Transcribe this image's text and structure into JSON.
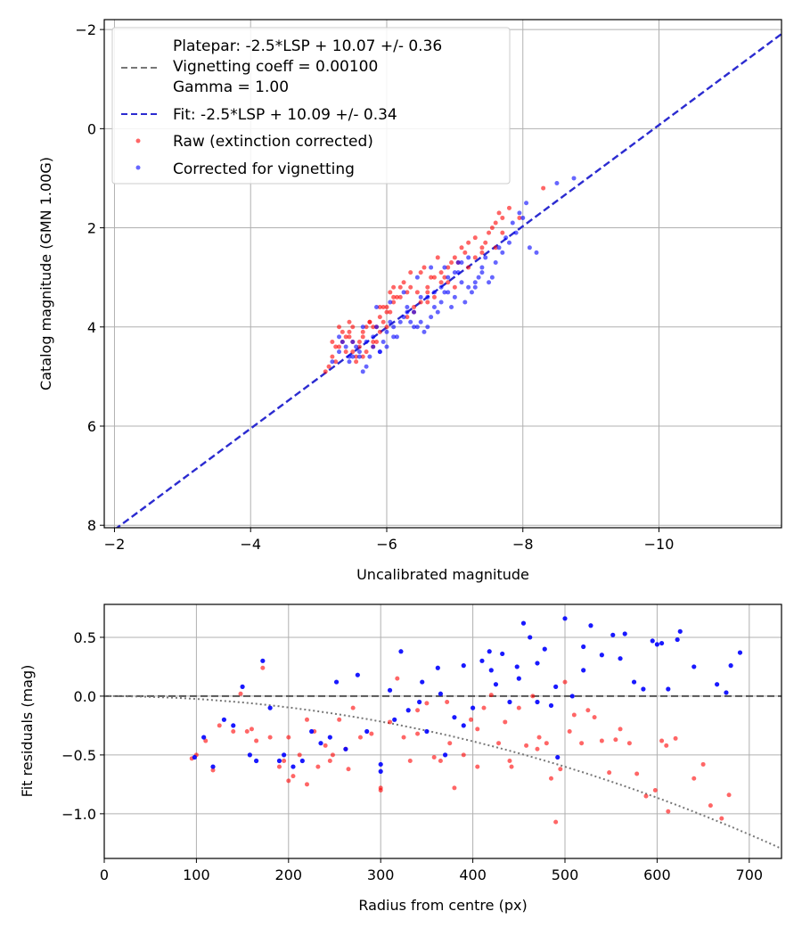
{
  "colors": {
    "raw": "#ff0000",
    "corrected": "#0000ff",
    "fit_line": "#2b2bd0",
    "platepar_line": "#777777",
    "grid": "#b0b0b0",
    "vignetting_curve": "#777777",
    "zero_line": "#555555"
  },
  "chart_data": [
    {
      "type": "scatter",
      "xlabel": "Uncalibrated magnitude",
      "ylabel": "Catalog magnitude (GMN 1.00G)",
      "xlim": [
        -1.85,
        -11.8
      ],
      "ylim": [
        8.05,
        -2.2
      ],
      "x_inverted": true,
      "y_inverted": true,
      "xticks": [
        -2,
        -4,
        -6,
        -8,
        -10
      ],
      "xtick_labels": [
        "−2",
        "−4",
        "−6",
        "−8",
        "−10"
      ],
      "yticks": [
        -2,
        0,
        2,
        4,
        6,
        8
      ],
      "ytick_labels": [
        "−2",
        "0",
        "2",
        "4",
        "6",
        "8"
      ],
      "grid": true,
      "legend_placement": "top-left",
      "legend": [
        "Platepar: -2.5*LSP + 10.07 +/- 0.36",
        "Vignetting coeff = 0.00100",
        "Gamma = 1.00",
        "Fit: -2.5*LSP + 10.09 +/- 0.34",
        "Raw (extinction corrected)",
        "Corrected for vignetting"
      ],
      "lines": [
        {
          "name": "Fit: -2.5*LSP + 10.09 +/- 0.34",
          "style": "dashed",
          "x": [
            -2.0,
            -11.8
          ],
          "y": [
            8.09,
            -1.91
          ]
        }
      ],
      "series": [
        {
          "name": "Raw (extinction corrected)",
          "x": [
            -5.1,
            -5.2,
            -5.25,
            -5.3,
            -5.35,
            -5.4,
            -5.45,
            -5.5,
            -5.55,
            -5.6,
            -5.65,
            -5.7,
            -5.75,
            -5.8,
            -5.85,
            -5.9,
            -5.95,
            -6.0,
            -6.05,
            -6.1,
            -5.2,
            -5.3,
            -5.4,
            -5.5,
            -5.6,
            -5.7,
            -5.8,
            -5.9,
            -6.0,
            -6.1,
            -5.15,
            -5.35,
            -5.45,
            -5.55,
            -5.65,
            -5.75,
            -5.85,
            -5.95,
            -6.05,
            -6.15,
            -6.2,
            -6.3,
            -6.4,
            -6.5,
            -6.6,
            -6.7,
            -6.8,
            -6.9,
            -7.0,
            -7.1,
            -6.25,
            -6.35,
            -6.45,
            -6.55,
            -6.65,
            -6.75,
            -6.85,
            -6.95,
            -7.05,
            -7.15,
            -7.2,
            -7.3,
            -7.4,
            -7.5,
            -7.6,
            -7.7,
            -7.8,
            -7.3,
            -7.45,
            -7.55,
            -7.65,
            -6.2,
            -6.4,
            -6.6,
            -6.8,
            -7.0,
            -8.3,
            -7.95,
            -7.7,
            -7.6,
            -7.4,
            -7.2,
            -6.9,
            -6.7,
            -6.5,
            -6.3,
            -5.45,
            -5.65,
            -5.8,
            -6.0,
            -5.25,
            -5.5,
            -5.9,
            -6.1,
            -6.35,
            -6.6
          ],
          "y": [
            4.9,
            4.6,
            4.7,
            4.4,
            4.3,
            4.5,
            4.2,
            4.0,
            4.6,
            4.3,
            4.1,
            4.5,
            3.9,
            4.0,
            4.3,
            3.8,
            3.9,
            3.6,
            3.7,
            3.5,
            4.3,
            4.0,
            4.2,
            4.5,
            4.4,
            4.0,
            4.3,
            4.1,
            3.7,
            3.4,
            4.8,
            4.1,
            3.9,
            4.7,
            4.2,
            3.9,
            4.0,
            3.6,
            3.3,
            3.4,
            3.4,
            3.3,
            3.6,
            2.9,
            3.2,
            3.0,
            3.1,
            2.8,
            2.6,
            2.4,
            3.1,
            3.2,
            3.3,
            2.8,
            3.0,
            2.6,
            3.0,
            2.7,
            2.7,
            2.5,
            2.3,
            2.2,
            2.4,
            2.1,
            1.9,
            1.8,
            1.6,
            2.6,
            2.3,
            2.0,
            1.7,
            3.2,
            3.7,
            3.5,
            2.9,
            3.2,
            1.2,
            1.8,
            2.1,
            2.4,
            2.5,
            2.8,
            3.1,
            3.4,
            3.5,
            3.8,
            4.1,
            4.6,
            4.4,
            4.0,
            4.4,
            4.3,
            3.6,
            3.2,
            2.9,
            3.3
          ]
        },
        {
          "name": "Corrected for vignetting",
          "x": [
            -5.2,
            -5.3,
            -5.4,
            -5.5,
            -5.6,
            -5.7,
            -5.8,
            -5.9,
            -6.0,
            -6.1,
            -5.35,
            -5.45,
            -5.55,
            -5.65,
            -5.75,
            -5.85,
            -5.95,
            -6.05,
            -6.15,
            -6.25,
            -6.3,
            -6.4,
            -6.5,
            -6.6,
            -6.7,
            -6.8,
            -6.9,
            -7.0,
            -7.1,
            -7.2,
            -6.35,
            -6.45,
            -6.55,
            -6.65,
            -6.75,
            -6.85,
            -6.95,
            -7.05,
            -7.15,
            -7.25,
            -7.3,
            -7.4,
            -7.5,
            -7.6,
            -7.7,
            -7.8,
            -7.9,
            -8.0,
            -8.1,
            -8.2,
            -7.35,
            -7.45,
            -7.55,
            -7.65,
            -7.75,
            -7.85,
            -7.95,
            -8.05,
            -8.5,
            -8.75,
            -5.5,
            -5.7,
            -5.9,
            -6.1,
            -6.3,
            -6.5,
            -6.7,
            -6.9,
            -7.1,
            -7.3,
            -5.6,
            -5.8,
            -6.0,
            -6.2,
            -6.4,
            -6.6,
            -6.8,
            -7.0,
            -7.2,
            -7.4,
            -5.3,
            -5.45,
            -5.65,
            -5.85,
            -6.05,
            -6.25,
            -6.45,
            -6.65,
            -6.85,
            -7.05
          ],
          "y": [
            4.7,
            4.5,
            4.4,
            4.3,
            4.6,
            4.8,
            4.2,
            4.5,
            4.4,
            4.0,
            4.3,
            4.7,
            4.4,
            4.9,
            4.6,
            4.0,
            4.3,
            3.9,
            4.2,
            3.8,
            3.7,
            4.0,
            3.9,
            4.0,
            3.6,
            3.5,
            3.3,
            3.4,
            3.1,
            3.2,
            3.9,
            4.0,
            4.1,
            3.8,
            3.7,
            3.3,
            3.6,
            2.9,
            3.5,
            3.3,
            3.2,
            2.8,
            3.1,
            2.7,
            2.5,
            2.3,
            2.1,
            1.8,
            2.4,
            2.5,
            3.0,
            2.6,
            3.0,
            2.4,
            2.2,
            1.9,
            1.7,
            1.5,
            1.1,
            1.0,
            4.6,
            4.3,
            4.5,
            4.2,
            3.6,
            3.4,
            3.3,
            3.0,
            2.7,
            3.1,
            4.5,
            4.4,
            4.1,
            3.9,
            3.7,
            3.4,
            3.2,
            2.9,
            2.6,
            2.9,
            4.2,
            4.6,
            4.0,
            3.6,
            3.5,
            3.3,
            3.0,
            2.8,
            2.8,
            2.7
          ]
        }
      ]
    },
    {
      "type": "scatter",
      "xlabel": "Radius from centre (px)",
      "ylabel": "Fit residuals (mag)",
      "xlim": [
        0,
        735
      ],
      "ylim": [
        -1.38,
        0.78
      ],
      "xticks": [
        0,
        100,
        200,
        300,
        400,
        500,
        600,
        700
      ],
      "xtick_labels": [
        "0",
        "100",
        "200",
        "300",
        "400",
        "500",
        "600",
        "700"
      ],
      "yticks": [
        -1.0,
        -0.5,
        0.0,
        0.5
      ],
      "ytick_labels": [
        "−1.0",
        "−0.5",
        "0.0",
        "0.5"
      ],
      "grid": true,
      "lines": [
        {
          "name": "zero",
          "style": "dashed",
          "y_const": 0.0
        },
        {
          "name": "vignetting model",
          "style": "dotted",
          "coeff": -2.4e-06
        }
      ],
      "series": [
        {
          "name": "Raw (extinction corrected)",
          "x": [
            95,
            100,
            110,
            118,
            125,
            140,
            148,
            155,
            160,
            165,
            172,
            180,
            190,
            195,
            200,
            205,
            212,
            220,
            228,
            232,
            240,
            248,
            255,
            262,
            270,
            278,
            290,
            300,
            310,
            318,
            325,
            332,
            340,
            350,
            358,
            365,
            372,
            380,
            390,
            398,
            405,
            412,
            420,
            428,
            435,
            442,
            450,
            458,
            465,
            472,
            480,
            485,
            490,
            495,
            500,
            510,
            518,
            525,
            532,
            540,
            548,
            555,
            570,
            578,
            588,
            598,
            605,
            612,
            620,
            640,
            658,
            670,
            678,
            200,
            220,
            245,
            265,
            300,
            340,
            375,
            405,
            440,
            470,
            505,
            560,
            610,
            650
          ],
          "x_note": "radius",
          "y": [
            -0.53,
            -0.5,
            -0.38,
            -0.63,
            -0.25,
            -0.3,
            0.02,
            -0.3,
            -0.28,
            -0.38,
            0.24,
            -0.35,
            -0.6,
            -0.55,
            -0.72,
            -0.68,
            -0.5,
            -0.75,
            -0.3,
            -0.6,
            -0.42,
            -0.5,
            -0.2,
            -0.45,
            -0.1,
            -0.35,
            -0.32,
            -0.78,
            -0.22,
            0.15,
            -0.35,
            -0.55,
            -0.32,
            -0.06,
            -0.52,
            -0.55,
            -0.05,
            -0.78,
            -0.5,
            -0.2,
            -0.28,
            -0.1,
            0.01,
            -0.4,
            -0.22,
            -0.6,
            -0.1,
            -0.42,
            0.0,
            -0.35,
            -0.4,
            -0.7,
            -1.07,
            -0.62,
            0.12,
            -0.16,
            -0.4,
            -0.12,
            -0.18,
            -0.38,
            -0.65,
            -0.37,
            -0.4,
            -0.66,
            -0.85,
            -0.8,
            -0.38,
            -0.98,
            -0.36,
            -0.7,
            -0.93,
            -1.04,
            -0.84,
            -0.35,
            -0.2,
            -0.55,
            -0.62,
            -0.8,
            -0.12,
            -0.4,
            -0.6,
            -0.55,
            -0.45,
            -0.3,
            -0.28,
            -0.42,
            -0.58
          ],
          "values_note": "mag"
        },
        {
          "name": "Corrected for vignetting",
          "x": [
            98,
            108,
            118,
            130,
            140,
            150,
            158,
            165,
            172,
            180,
            190,
            195,
            205,
            215,
            225,
            235,
            245,
            252,
            262,
            275,
            285,
            300,
            310,
            322,
            330,
            342,
            350,
            362,
            370,
            380,
            390,
            400,
            410,
            418,
            425,
            432,
            440,
            448,
            455,
            462,
            470,
            478,
            485,
            492,
            500,
            508,
            520,
            528,
            540,
            552,
            565,
            575,
            585,
            595,
            605,
            612,
            622,
            640,
            665,
            675,
            690,
            300,
            315,
            345,
            365,
            390,
            420,
            450,
            470,
            490,
            520,
            560,
            600,
            625,
            680
          ],
          "y": [
            -0.52,
            -0.35,
            -0.6,
            -0.2,
            -0.25,
            0.08,
            -0.5,
            -0.55,
            0.3,
            -0.1,
            -0.55,
            -0.5,
            -0.6,
            -0.55,
            -0.3,
            -0.4,
            -0.35,
            0.12,
            -0.45,
            0.18,
            -0.3,
            -0.58,
            0.05,
            0.38,
            -0.12,
            -0.05,
            -0.3,
            0.24,
            -0.5,
            -0.18,
            0.26,
            -0.1,
            0.3,
            0.38,
            0.1,
            0.36,
            -0.05,
            0.25,
            0.62,
            0.5,
            0.28,
            0.4,
            -0.08,
            -0.52,
            0.66,
            0.0,
            0.42,
            0.6,
            0.35,
            0.52,
            0.53,
            0.12,
            0.06,
            0.47,
            0.45,
            0.06,
            0.48,
            0.25,
            0.1,
            0.03,
            0.37,
            -0.64,
            -0.2,
            0.12,
            0.02,
            -0.25,
            0.22,
            0.15,
            -0.05,
            0.08,
            0.22,
            0.32,
            0.44,
            0.55,
            0.26
          ]
        }
      ]
    }
  ]
}
